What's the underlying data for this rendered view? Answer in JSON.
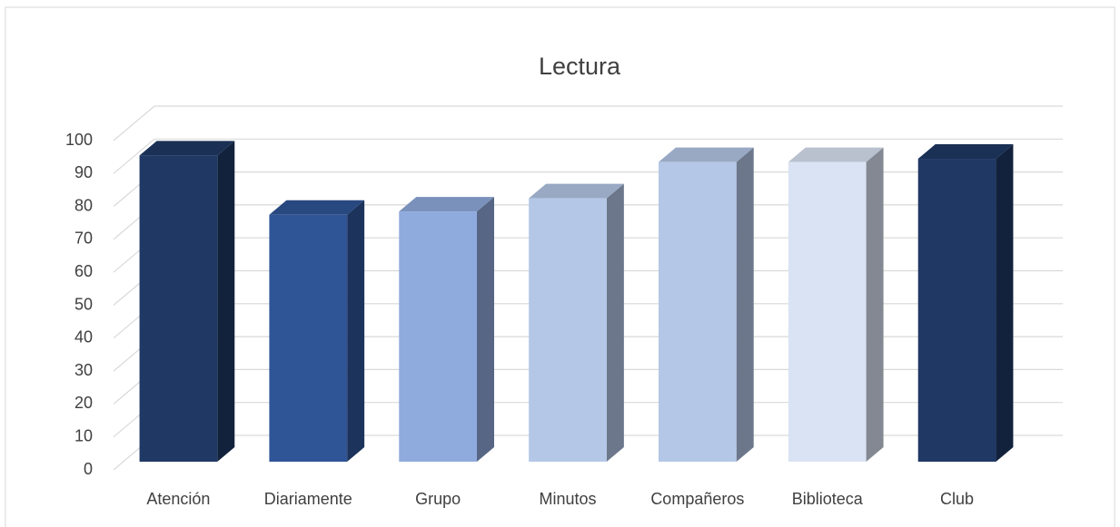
{
  "chart_data": {
    "type": "bar3d",
    "title": "Lectura",
    "categories": [
      "Atención",
      "Diariamente",
      "Grupo",
      "Minutos",
      "Compañeros",
      "Biblioteca",
      "Club"
    ],
    "values": [
      93,
      75,
      76,
      80,
      91,
      91,
      92
    ],
    "colors": [
      "#203864",
      "#2f5597",
      "#8faadc",
      "#b4c7e7",
      "#b4c7e7",
      "#dae3f3",
      "#203864"
    ],
    "ylim": [
      0,
      100
    ],
    "yticks": [
      0,
      10,
      20,
      30,
      40,
      50,
      60,
      70,
      80,
      90,
      100
    ],
    "grid": true
  }
}
